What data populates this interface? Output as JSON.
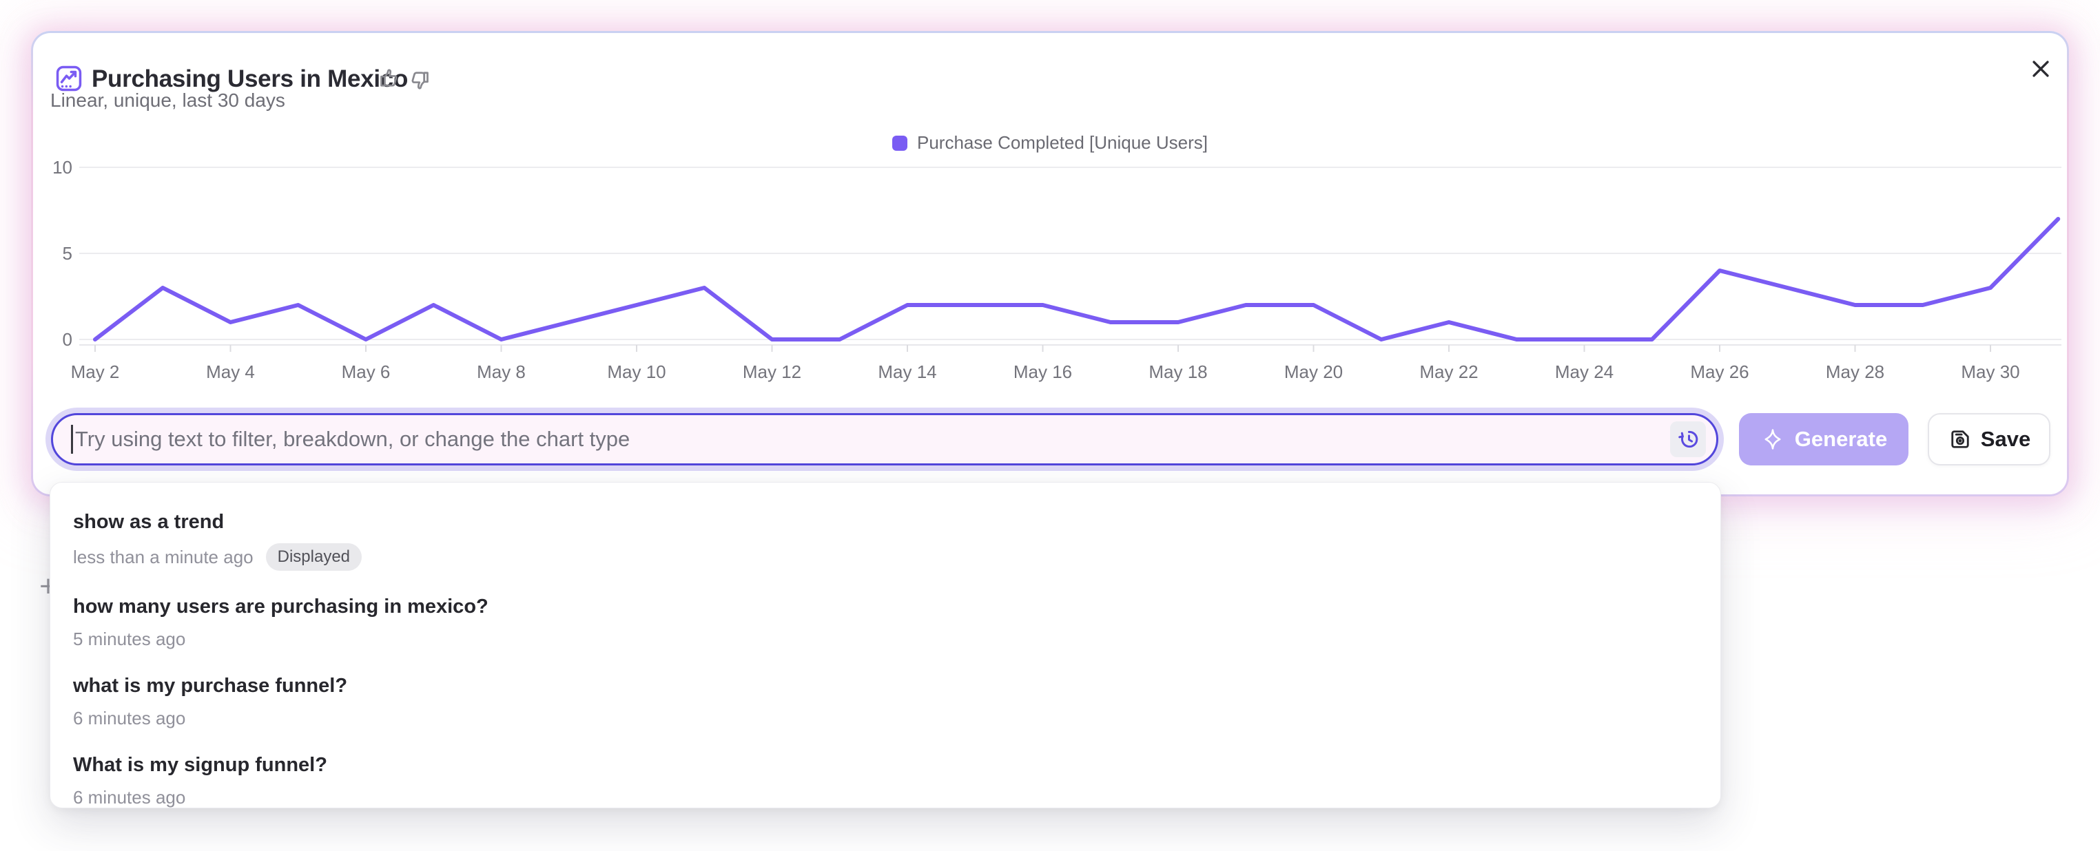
{
  "header": {
    "title": "Purchasing Users in Mexico",
    "subtitle": "Linear, unique, last 30 days"
  },
  "legend": {
    "label": "Purchase Completed [Unique Users]"
  },
  "chart_data": {
    "type": "line",
    "title": "Purchasing Users in Mexico",
    "x": [
      "May 2",
      "May 3",
      "May 4",
      "May 5",
      "May 6",
      "May 7",
      "May 8",
      "May 9",
      "May 10",
      "May 11",
      "May 12",
      "May 13",
      "May 14",
      "May 15",
      "May 16",
      "May 17",
      "May 18",
      "May 19",
      "May 20",
      "May 21",
      "May 22",
      "May 23",
      "May 24",
      "May 25",
      "May 26",
      "May 27",
      "May 28",
      "May 29",
      "May 30",
      "May 31"
    ],
    "series": [
      {
        "name": "Purchase Completed [Unique Users]",
        "values": [
          0,
          3,
          1,
          2,
          0,
          2,
          0,
          1,
          2,
          3,
          0,
          0,
          2,
          2,
          2,
          1,
          1,
          2,
          2,
          0,
          1,
          0,
          0,
          0,
          4,
          3,
          2,
          2,
          3,
          7
        ]
      }
    ],
    "yticks": [
      0,
      5,
      10
    ],
    "ylim": [
      0,
      10
    ],
    "xtick_every": 2,
    "grid": "horizontal",
    "legend_position": "top-center",
    "line_color": "#7A5CF3"
  },
  "query_bar": {
    "placeholder": "Try using text to filter, breakdown, or change the chart type",
    "history_icon": "history-clock-icon"
  },
  "actions": {
    "generate_label": "Generate",
    "save_label": "Save"
  },
  "history_dropdown": {
    "items": [
      {
        "query": "show as a trend",
        "time": "less than a minute ago",
        "badge": "Displayed"
      },
      {
        "query": "how many users are purchasing in mexico?",
        "time": "5 minutes ago"
      },
      {
        "query": "what is my purchase funnel?",
        "time": "6 minutes ago"
      },
      {
        "query": "What is my signup funnel?",
        "time": "6 minutes ago"
      }
    ]
  },
  "background_plus": "+",
  "colors": {
    "accent_purple": "#7A5CF3",
    "input_border": "#5246DB",
    "input_bg": "#FDF4FB",
    "focus_ring": "#DDD8F7",
    "generate_bg": "#B5A7F4",
    "card_glow_pink": "#F2CFE7",
    "grid_line": "#ECECEF",
    "axis_text": "#74747C",
    "badge_bg": "#E9E9EC"
  }
}
